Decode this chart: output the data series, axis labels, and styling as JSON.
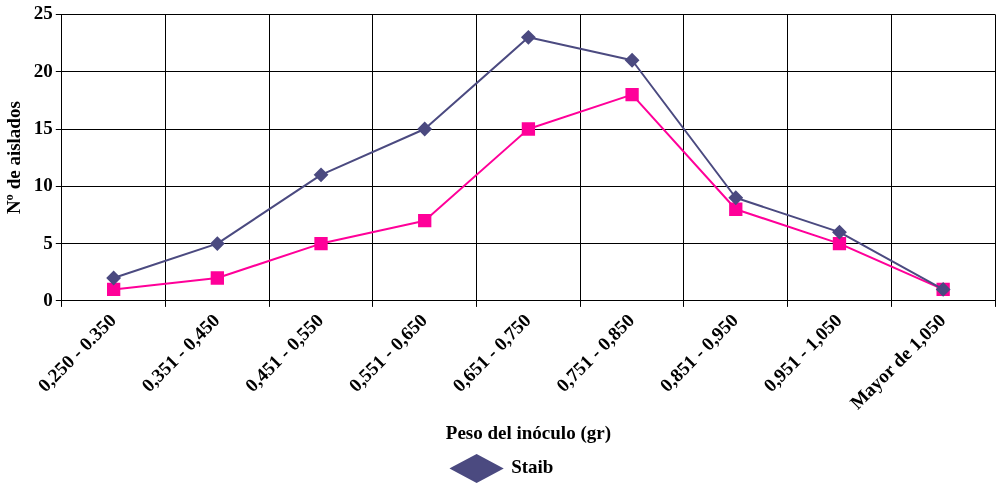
{
  "chart_data": {
    "type": "line",
    "xlabel": "Peso del inóculo (gr)",
    "ylabel": "Nº de aislados",
    "categories": [
      "0,250 - 0.350",
      "0,351 - 0,450",
      "0,451 - 0,550",
      "0,551 - 0,650",
      "0,651 - 0,750",
      "0,751 - 0,850",
      "0,851 - 0,950",
      "0,951 - 1,050",
      "Mayor de 1,050"
    ],
    "series": [
      {
        "name": "Staib",
        "color": "#4b4a80",
        "marker": "diamond",
        "values": [
          2,
          5,
          11,
          15,
          23,
          21,
          9,
          6,
          1
        ]
      },
      {
        "color": "#ff0099",
        "marker": "square",
        "values": [
          1,
          2,
          5,
          7,
          15,
          18,
          8,
          5,
          1
        ]
      }
    ],
    "ylim": [
      0,
      25
    ],
    "yticks": [
      0,
      5,
      10,
      15,
      20,
      25
    ],
    "grid": true,
    "legend": "bottom",
    "line_style": "solid"
  }
}
